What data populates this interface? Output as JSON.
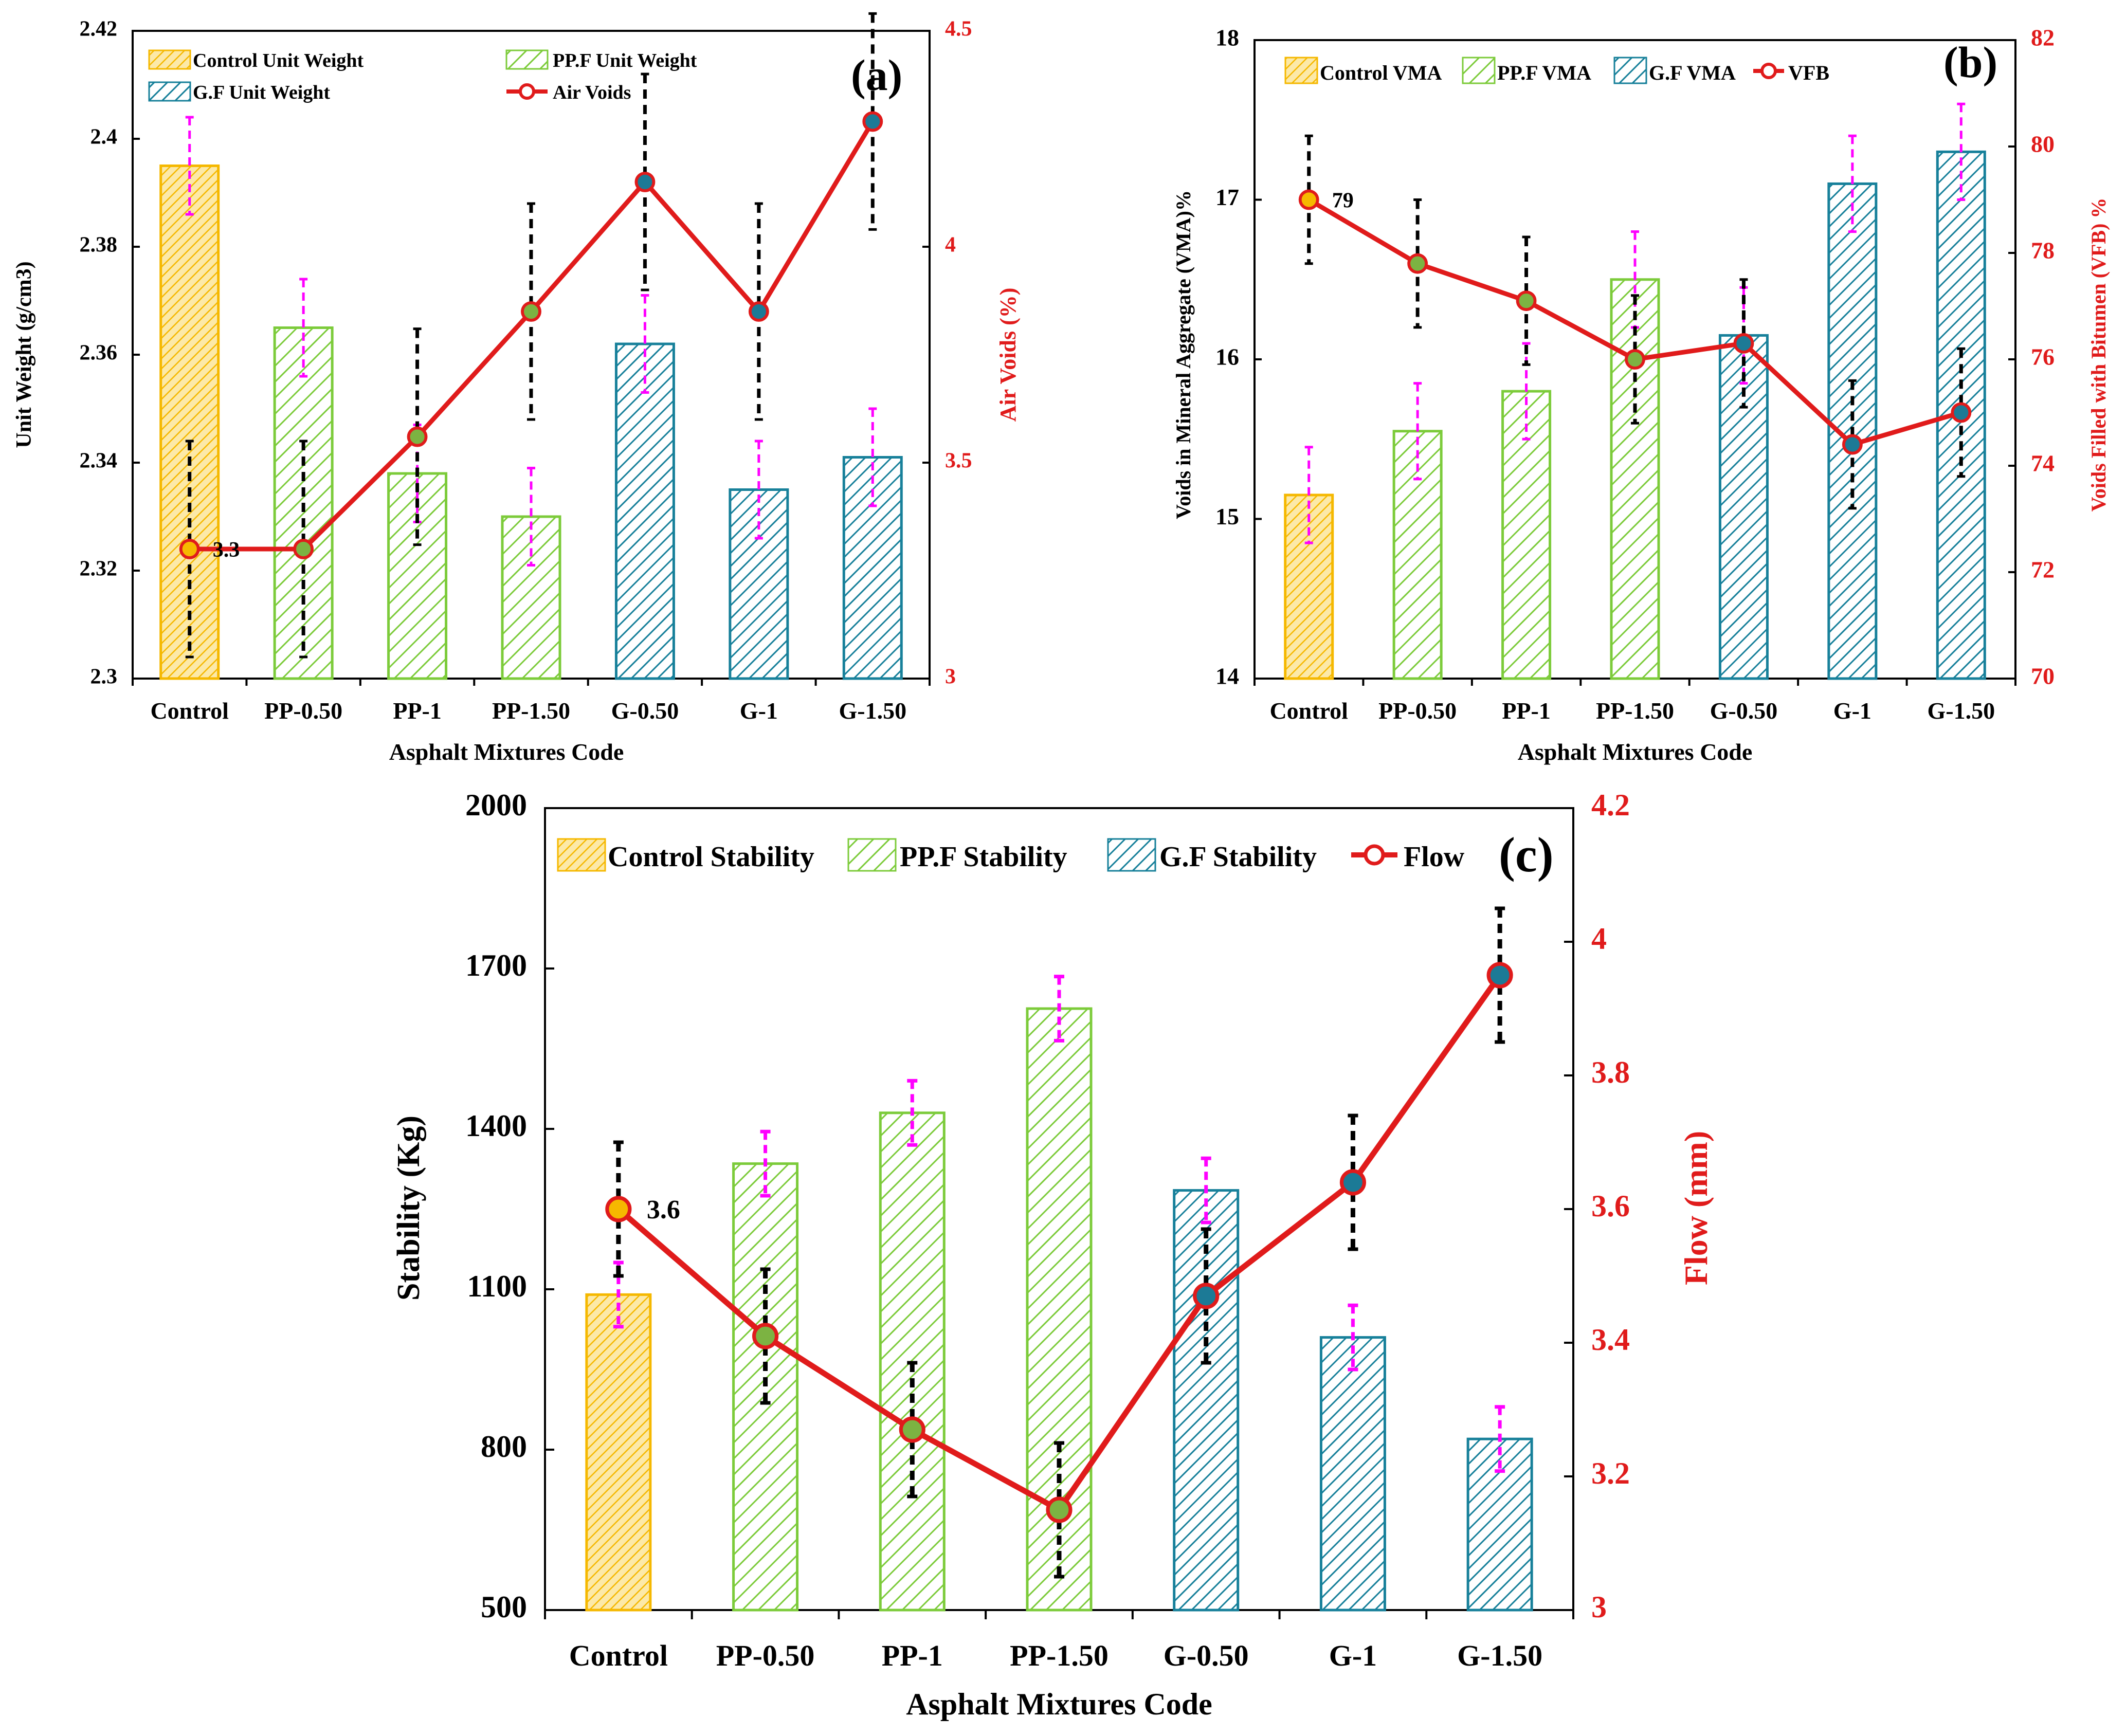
{
  "colors": {
    "control": "#F5B800",
    "control_fill": "#FCE9A8",
    "ppf": "#7CCB3A",
    "gf": "#17809A",
    "line": "#E01B1B",
    "err_line": "#000000",
    "err_bar": "#FF00FF",
    "marker_ppf": "#7CB342",
    "marker_gf": "#1C7A96",
    "marker_control": "#F6B800",
    "axis_right": "#E01B1B"
  },
  "chart_data": [
    {
      "type": "bar",
      "panel_label": "(a)",
      "categories": [
        "Control",
        "PP-0.50",
        "PP-1",
        "PP-1.50",
        "G-0.50",
        "G-1",
        "G-1.50"
      ],
      "xlabel": "Asphalt Mixtures Code",
      "ylabel": "Unit Weight (g/cm3)",
      "y2label": "Air Voids (%)",
      "ylim": [
        2.3,
        2.42
      ],
      "yticks": [
        "2.3",
        "2.32",
        "2.34",
        "2.36",
        "2.38",
        "2.4",
        "2.42"
      ],
      "y2lim": [
        3,
        4.5
      ],
      "y2ticks": [
        "3",
        "3.5",
        "4",
        "4.5"
      ],
      "bars": [
        2.395,
        2.365,
        2.338,
        2.33,
        2.362,
        2.335,
        2.341
      ],
      "bar_err": [
        0.009,
        0.009,
        0.009,
        0.009,
        0.009,
        0.009,
        0.009
      ],
      "line": [
        3.3,
        3.3,
        3.56,
        3.85,
        4.15,
        3.85,
        4.29
      ],
      "line_err": [
        0.25,
        0.25,
        0.25,
        0.25,
        0.25,
        0.25,
        0.25
      ],
      "line_label": "3.3",
      "legend": [
        "Control  Unit Weight",
        "PP.F Unit Weight",
        "G.F  Unit Weight",
        "Air Voids"
      ]
    },
    {
      "type": "bar",
      "panel_label": "(b)",
      "categories": [
        "Control",
        "PP-0.50",
        "PP-1",
        "PP-1.50",
        "G-0.50",
        "G-1",
        "G-1.50"
      ],
      "xlabel": "Asphalt Mixtures Code",
      "ylabel": "Voids in Mineral Aggregate  (VMA)%",
      "y2label": "Voids Filled with Bitumen (VFB) %",
      "ylim": [
        14,
        18
      ],
      "yticks": [
        "14",
        "15",
        "16",
        "17",
        "18"
      ],
      "y2lim": [
        70,
        82
      ],
      "y2ticks": [
        "70",
        "72",
        "74",
        "76",
        "78",
        "80",
        "82"
      ],
      "bars": [
        15.15,
        15.55,
        15.8,
        16.5,
        16.15,
        17.1,
        17.3
      ],
      "bar_err": [
        0.3,
        0.3,
        0.3,
        0.3,
        0.3,
        0.3,
        0.3
      ],
      "line": [
        79,
        77.8,
        77.1,
        76,
        76.3,
        74.4,
        75
      ],
      "line_err": [
        1.2,
        1.2,
        1.2,
        1.2,
        1.2,
        1.2,
        1.2
      ],
      "line_label": "79",
      "legend": [
        "Control VMA",
        "PP.F VMA",
        "G.F  VMA",
        "VFB"
      ]
    },
    {
      "type": "bar",
      "panel_label": "(c)",
      "categories": [
        "Control",
        "PP-0.50",
        "PP-1",
        "PP-1.50",
        "G-0.50",
        "G-1",
        "G-1.50"
      ],
      "xlabel": "Asphalt Mixtures Code",
      "ylabel": "Stability (Kg)",
      "y2label": "Flow (mm)",
      "ylim": [
        500,
        2000
      ],
      "yticks": [
        "500",
        "800",
        "1100",
        "1400",
        "1700",
        "2000"
      ],
      "y2lim": [
        3,
        4.2
      ],
      "y2ticks": [
        "3",
        "3.2",
        "3.4",
        "3.6",
        "3.8",
        "4",
        "4.2"
      ],
      "bars": [
        1090,
        1335,
        1430,
        1625,
        1285,
        1010,
        820
      ],
      "bar_err": [
        60,
        60,
        60,
        60,
        60,
        60,
        60
      ],
      "line": [
        3.6,
        3.41,
        3.27,
        3.15,
        3.47,
        3.64,
        3.95
      ],
      "line_err": [
        0.1,
        0.1,
        0.1,
        0.1,
        0.1,
        0.1,
        0.1
      ],
      "line_label": "3.6",
      "legend": [
        "Control  Stability",
        "PP.F Stability",
        "G.F  Stability",
        "Flow"
      ]
    }
  ]
}
